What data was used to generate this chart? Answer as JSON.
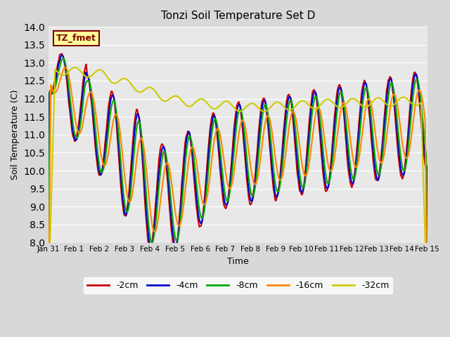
{
  "title": "Tonzi Soil Temperature Set D",
  "xlabel": "Time",
  "ylabel": "Soil Temperature (C)",
  "ylim": [
    8.0,
    14.0
  ],
  "yticks": [
    8.0,
    8.5,
    9.0,
    9.5,
    10.0,
    10.5,
    11.0,
    11.5,
    12.0,
    12.5,
    13.0,
    13.5,
    14.0
  ],
  "label_text": "TZ_fmet",
  "label_bg": "#ffff99",
  "label_border": "#800000",
  "colors": {
    "-2cm": "#cc0000",
    "-4cm": "#0000cc",
    "-8cm": "#00aa00",
    "-16cm": "#ff8800",
    "-32cm": "#cccc00"
  },
  "line_width": 1.5,
  "fig_bg": "#d8d8d8",
  "plot_bg": "#e8e8e8",
  "grid_color": "#ffffff",
  "xtick_labels": [
    "Jan 31",
    "Feb 1",
    "Feb 2",
    "Feb 3",
    "Feb 4",
    "Feb 5",
    "Feb 6",
    "Feb 7",
    "Feb 8",
    "Feb 9",
    "Feb 10",
    "Feb 11",
    "Feb 12",
    "Feb 13",
    "Feb 14",
    "Feb 15"
  ],
  "n_days": 15
}
